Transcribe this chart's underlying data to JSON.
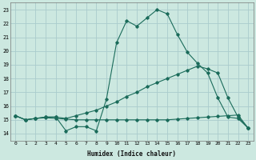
{
  "title": "",
  "xlabel": "Humidex (Indice chaleur)",
  "ylabel": "",
  "bg_color": "#cce8e0",
  "grid_color": "#aacccc",
  "line_color": "#1a6b5a",
  "xlim": [
    -0.5,
    23.5
  ],
  "ylim": [
    13.5,
    23.5
  ],
  "yticks": [
    14,
    15,
    16,
    17,
    18,
    19,
    20,
    21,
    22,
    23
  ],
  "xticks": [
    0,
    1,
    2,
    3,
    4,
    5,
    6,
    7,
    8,
    9,
    10,
    11,
    12,
    13,
    14,
    15,
    16,
    17,
    18,
    19,
    20,
    21,
    22,
    23
  ],
  "series1_x": [
    0,
    1,
    2,
    3,
    4,
    5,
    6,
    7,
    8,
    9,
    10,
    11,
    12,
    13,
    14,
    15,
    16,
    17,
    18,
    19,
    20,
    21,
    22,
    23
  ],
  "series1_y": [
    15.3,
    15.0,
    15.1,
    15.2,
    15.2,
    14.2,
    14.5,
    14.5,
    14.2,
    16.5,
    20.6,
    22.2,
    21.8,
    22.4,
    23.0,
    22.7,
    21.2,
    19.9,
    19.1,
    18.4,
    16.6,
    15.2,
    15.1,
    14.4
  ],
  "series2_x": [
    0,
    1,
    2,
    3,
    4,
    5,
    6,
    7,
    8,
    9,
    10,
    11,
    12,
    13,
    14,
    15,
    16,
    17,
    18,
    19,
    20,
    21,
    22,
    23
  ],
  "series2_y": [
    15.3,
    15.0,
    15.1,
    15.15,
    15.1,
    15.05,
    15.0,
    15.0,
    15.0,
    15.0,
    15.0,
    15.0,
    15.0,
    15.0,
    15.0,
    15.0,
    15.05,
    15.1,
    15.15,
    15.2,
    15.25,
    15.3,
    15.35,
    14.4
  ],
  "series3_x": [
    0,
    1,
    2,
    3,
    4,
    5,
    6,
    7,
    8,
    9,
    10,
    11,
    12,
    13,
    14,
    15,
    16,
    17,
    18,
    19,
    20,
    21,
    22,
    23
  ],
  "series3_y": [
    15.3,
    15.0,
    15.1,
    15.2,
    15.2,
    15.1,
    15.3,
    15.5,
    15.7,
    16.0,
    16.3,
    16.7,
    17.0,
    17.4,
    17.7,
    18.0,
    18.3,
    18.6,
    18.9,
    18.7,
    18.4,
    16.6,
    15.2,
    14.4
  ]
}
